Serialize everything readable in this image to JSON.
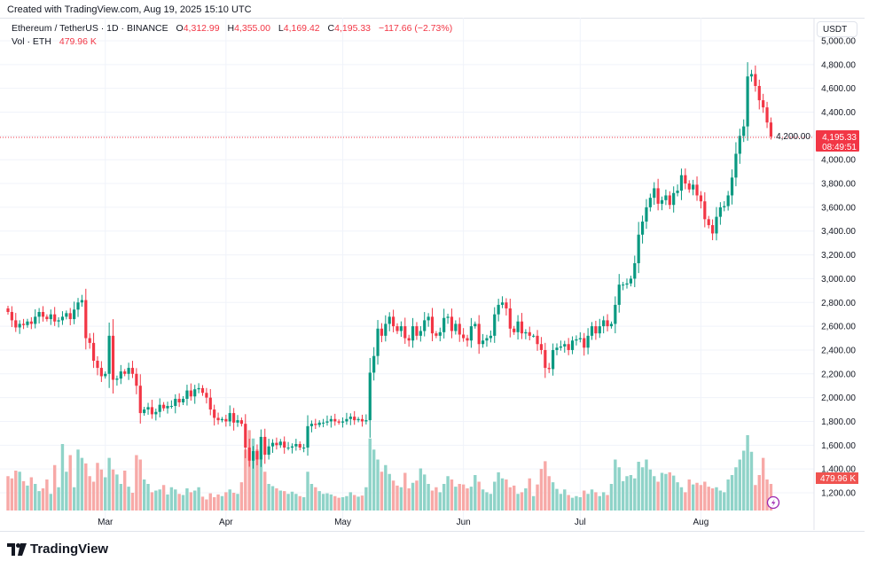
{
  "created_label": "Created with TradingView.com, Aug 19, 2025 15:10 UTC",
  "legend": {
    "symbol": "Ethereum / TetherUS · 1D · BINANCE",
    "o_label": "O",
    "o": "4,312.99",
    "h_label": "H",
    "h": "4,355.00",
    "l_label": "L",
    "l": "4,169.42",
    "c_label": "C",
    "c": "4,195.33",
    "change": "−117.66 (−2.73%)",
    "vol_label": "Vol · ETH",
    "vol": "479.96 K"
  },
  "currency": "USDT",
  "last_price_label": "4,195.33",
  "countdown": "08:49:51",
  "last_volume_label": "479.96 K",
  "logo": "TradingView",
  "colors": {
    "up": "#089981",
    "down": "#f23645",
    "up_vol": "#8fd3c8",
    "down_vol": "#f7a9a7",
    "alert": "#9c27b0"
  },
  "chart_data": {
    "type": "candlestick",
    "title": "",
    "ylim": [
      1200,
      5000
    ],
    "y_ticks": [
      "1,200.00",
      "1,400.00",
      "1,600.00",
      "1,800.00",
      "2,000.00",
      "2,200.00",
      "2,400.00",
      "2,600.00",
      "2,800.00",
      "3,000.00",
      "3,200.00",
      "3,400.00",
      "3,600.00",
      "3,800.00",
      "4,000.00",
      "4,200.00",
      "4,400.00",
      "4,600.00",
      "4,800.00",
      "5,000.00"
    ],
    "x_ticks": [
      "Mar",
      "Apr",
      "May",
      "Jun",
      "Jul",
      "Aug"
    ],
    "grid": true,
    "last": {
      "open": 4312.99,
      "high": 4355.0,
      "low": 4169.42,
      "close": 4195.33,
      "volume_k": 479.96
    },
    "close": [
      2720,
      2650,
      2590,
      2620,
      2610,
      2640,
      2620,
      2680,
      2720,
      2680,
      2660,
      2700,
      2640,
      2650,
      2680,
      2710,
      2660,
      2740,
      2800,
      2820,
      2500,
      2460,
      2310,
      2250,
      2180,
      2200,
      2520,
      2150,
      2160,
      2220,
      2200,
      2250,
      2200,
      2100,
      1870,
      1900,
      1920,
      1860,
      1880,
      1940,
      1910,
      1930,
      1930,
      1990,
      1960,
      1990,
      2060,
      2010,
      2070,
      2080,
      2040,
      2000,
      1900,
      1830,
      1810,
      1820,
      1800,
      1870,
      1790,
      1810,
      1780,
      1580,
      1470,
      1550,
      1480,
      1670,
      1520,
      1590,
      1620,
      1600,
      1630,
      1580,
      1580,
      1590,
      1610,
      1580,
      1580,
      1760,
      1780,
      1770,
      1790,
      1790,
      1800,
      1820,
      1800,
      1790,
      1800,
      1820,
      1840,
      1810,
      1820,
      1800,
      1810,
      2210,
      2350,
      2580,
      2520,
      2620,
      2680,
      2600,
      2560,
      2600,
      2500,
      2480,
      2600,
      2520,
      2560,
      2650,
      2680,
      2540,
      2520,
      2550,
      2670,
      2680,
      2560,
      2620,
      2530,
      2500,
      2480,
      2600,
      2620,
      2450,
      2480,
      2500,
      2520,
      2700,
      2780,
      2800,
      2750,
      2580,
      2550,
      2640,
      2540,
      2550,
      2520,
      2520,
      2450,
      2400,
      2250,
      2240,
      2400,
      2420,
      2430,
      2450,
      2400,
      2480,
      2490,
      2500,
      2420,
      2520,
      2600,
      2540,
      2600,
      2650,
      2600,
      2620,
      2780,
      2950,
      2950,
      2960,
      3000,
      3130,
      3370,
      3480,
      3600,
      3680,
      3760,
      3630,
      3660,
      3700,
      3620,
      3720,
      3740,
      3870,
      3800,
      3750,
      3790,
      3700,
      3650,
      3500,
      3450,
      3380,
      3520,
      3600,
      3610,
      3700,
      3850,
      4050,
      4200,
      4280,
      4700,
      4720,
      4620,
      4500,
      4440,
      4312.99,
      4195.33
    ],
    "volume_k": [
      620,
      580,
      720,
      700,
      530,
      450,
      600,
      480,
      350,
      400,
      560,
      300,
      820,
      420,
      1200,
      700,
      1000,
      420,
      1100,
      950,
      850,
      620,
      520,
      860,
      740,
      600,
      950,
      740,
      650,
      480,
      720,
      430,
      320,
      1000,
      920,
      560,
      480,
      330,
      360,
      380,
      460,
      290,
      420,
      380,
      300,
      280,
      400,
      330,
      360,
      420,
      250,
      200,
      310,
      240,
      290,
      260,
      330,
      380,
      320,
      300,
      510,
      1100,
      1450,
      1300,
      1100,
      1080,
      700,
      480,
      440,
      400,
      360,
      350,
      300,
      340,
      300,
      260,
      240,
      700,
      480,
      420,
      350,
      300,
      310,
      290,
      260,
      230,
      240,
      260,
      330,
      280,
      250,
      270,
      420,
      1300,
      1100,
      920,
      700,
      820,
      660,
      540,
      450,
      420,
      680,
      400,
      500,
      540,
      760,
      650,
      480,
      360,
      420,
      330,
      480,
      620,
      560,
      430,
      480,
      470,
      400,
      430,
      640,
      520,
      380,
      330,
      300,
      520,
      690,
      580,
      560,
      420,
      450,
      300,
      330,
      400,
      580,
      260,
      470,
      750,
      890,
      620,
      510,
      390,
      300,
      380,
      280,
      230,
      260,
      240,
      360,
      300,
      380,
      330,
      260,
      330,
      280,
      480,
      920,
      780,
      530,
      620,
      640,
      580,
      880,
      780,
      920,
      740,
      620,
      520,
      680,
      660,
      690,
      630,
      510,
      420,
      330,
      560,
      470,
      500,
      460,
      520,
      430,
      400,
      420,
      360,
      330,
      560,
      640,
      780,
      920,
      1080,
      1360,
      1060,
      460,
      640,
      950,
      560,
      479.96
    ]
  }
}
